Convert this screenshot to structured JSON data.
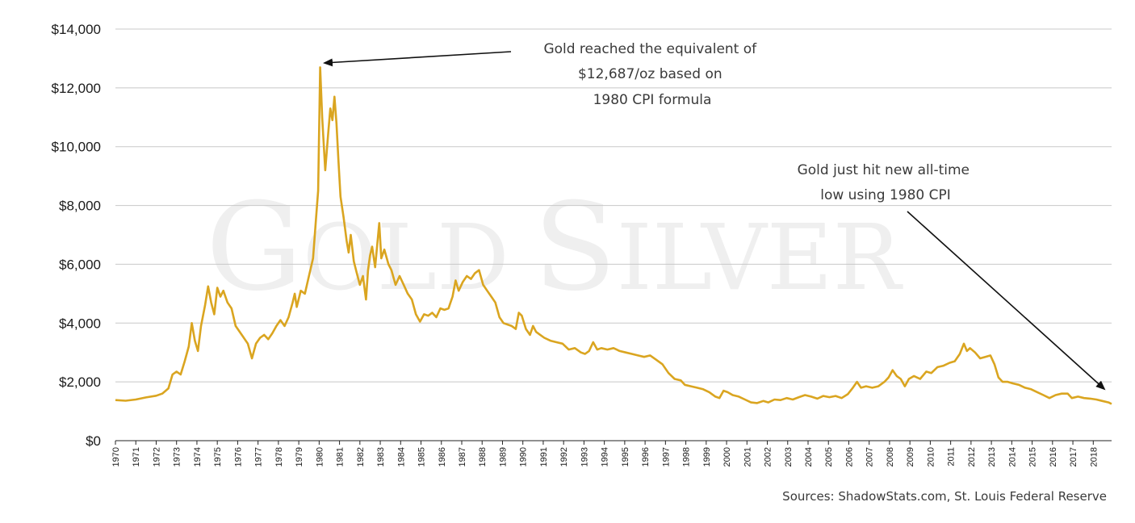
{
  "chart_data": {
    "type": "line",
    "title": "",
    "xlabel": "",
    "ylabel": "",
    "ylim": [
      0,
      14000
    ],
    "xlim": [
      1970,
      2018.9
    ],
    "grid": true,
    "legend": "none",
    "y_ticks": [
      0,
      2000,
      4000,
      6000,
      8000,
      10000,
      12000,
      14000
    ],
    "y_tick_labels": [
      "$0",
      "$2,000",
      "$4,000",
      "$6,000",
      "$8,000",
      "$10,000",
      "$12,000",
      "$14,000"
    ],
    "x_tick_labels": [
      "1970",
      "1971",
      "1972",
      "1973",
      "1974",
      "1975",
      "1976",
      "1977",
      "1978",
      "1979",
      "1980",
      "1981",
      "1982",
      "1983",
      "1984",
      "1985",
      "1986",
      "1987",
      "1988",
      "1989",
      "1990",
      "1991",
      "1992",
      "1993",
      "1994",
      "1995",
      "1996",
      "1997",
      "1998",
      "1999",
      "2000",
      "2001",
      "2002",
      "2003",
      "2004",
      "2005",
      "2006",
      "2007",
      "2008",
      "2009",
      "2010",
      "2011",
      "2012",
      "2013",
      "2014",
      "2015",
      "2016",
      "2017",
      "2018"
    ],
    "series": [
      {
        "color": "#DAA520",
        "points": [
          [
            1970.0,
            1380
          ],
          [
            1970.5,
            1360
          ],
          [
            1971.0,
            1400
          ],
          [
            1971.5,
            1470
          ],
          [
            1972.0,
            1530
          ],
          [
            1972.3,
            1600
          ],
          [
            1972.6,
            1780
          ],
          [
            1972.8,
            2250
          ],
          [
            1973.0,
            2350
          ],
          [
            1973.2,
            2250
          ],
          [
            1973.4,
            2700
          ],
          [
            1973.6,
            3200
          ],
          [
            1973.75,
            4000
          ],
          [
            1973.9,
            3400
          ],
          [
            1974.05,
            3050
          ],
          [
            1974.2,
            3900
          ],
          [
            1974.4,
            4600
          ],
          [
            1974.55,
            5250
          ],
          [
            1974.7,
            4700
          ],
          [
            1974.85,
            4300
          ],
          [
            1975.0,
            5200
          ],
          [
            1975.15,
            4900
          ],
          [
            1975.3,
            5100
          ],
          [
            1975.5,
            4700
          ],
          [
            1975.7,
            4500
          ],
          [
            1975.9,
            3900
          ],
          [
            1976.2,
            3600
          ],
          [
            1976.5,
            3300
          ],
          [
            1976.7,
            2800
          ],
          [
            1976.9,
            3300
          ],
          [
            1977.1,
            3500
          ],
          [
            1977.3,
            3600
          ],
          [
            1977.5,
            3450
          ],
          [
            1977.7,
            3650
          ],
          [
            1977.9,
            3900
          ],
          [
            1978.1,
            4100
          ],
          [
            1978.3,
            3900
          ],
          [
            1978.5,
            4200
          ],
          [
            1978.7,
            4700
          ],
          [
            1978.8,
            5000
          ],
          [
            1978.9,
            4550
          ],
          [
            1979.1,
            5100
          ],
          [
            1979.3,
            5000
          ],
          [
            1979.5,
            5600
          ],
          [
            1979.7,
            6200
          ],
          [
            1979.85,
            7600
          ],
          [
            1979.95,
            8500
          ],
          [
            1980.05,
            12700
          ],
          [
            1980.15,
            11000
          ],
          [
            1980.3,
            9200
          ],
          [
            1980.45,
            10500
          ],
          [
            1980.55,
            11300
          ],
          [
            1980.65,
            10900
          ],
          [
            1980.75,
            11700
          ],
          [
            1980.85,
            10800
          ],
          [
            1980.95,
            9500
          ],
          [
            1981.05,
            8300
          ],
          [
            1981.2,
            7600
          ],
          [
            1981.35,
            6800
          ],
          [
            1981.45,
            6400
          ],
          [
            1981.55,
            7000
          ],
          [
            1981.7,
            6100
          ],
          [
            1981.85,
            5700
          ],
          [
            1982.0,
            5300
          ],
          [
            1982.15,
            5600
          ],
          [
            1982.3,
            4800
          ],
          [
            1982.4,
            5800
          ],
          [
            1982.5,
            6300
          ],
          [
            1982.6,
            6600
          ],
          [
            1982.75,
            5900
          ],
          [
            1982.95,
            7400
          ],
          [
            1983.05,
            6200
          ],
          [
            1983.2,
            6500
          ],
          [
            1983.4,
            6000
          ],
          [
            1983.55,
            5800
          ],
          [
            1983.75,
            5300
          ],
          [
            1983.95,
            5600
          ],
          [
            1984.15,
            5300
          ],
          [
            1984.35,
            5000
          ],
          [
            1984.55,
            4800
          ],
          [
            1984.75,
            4300
          ],
          [
            1984.95,
            4050
          ],
          [
            1985.15,
            4300
          ],
          [
            1985.35,
            4250
          ],
          [
            1985.55,
            4350
          ],
          [
            1985.75,
            4200
          ],
          [
            1985.95,
            4500
          ],
          [
            1986.15,
            4450
          ],
          [
            1986.35,
            4500
          ],
          [
            1986.55,
            4900
          ],
          [
            1986.7,
            5450
          ],
          [
            1986.85,
            5100
          ],
          [
            1987.05,
            5400
          ],
          [
            1987.25,
            5600
          ],
          [
            1987.45,
            5500
          ],
          [
            1987.65,
            5700
          ],
          [
            1987.85,
            5800
          ],
          [
            1988.05,
            5300
          ],
          [
            1988.25,
            5100
          ],
          [
            1988.45,
            4900
          ],
          [
            1988.65,
            4700
          ],
          [
            1988.85,
            4200
          ],
          [
            1989.05,
            4000
          ],
          [
            1989.25,
            3950
          ],
          [
            1989.45,
            3900
          ],
          [
            1989.65,
            3800
          ],
          [
            1989.8,
            4350
          ],
          [
            1989.95,
            4250
          ],
          [
            1990.15,
            3800
          ],
          [
            1990.35,
            3600
          ],
          [
            1990.5,
            3900
          ],
          [
            1990.65,
            3700
          ],
          [
            1990.85,
            3600
          ],
          [
            1991.05,
            3500
          ],
          [
            1991.35,
            3400
          ],
          [
            1991.65,
            3350
          ],
          [
            1991.95,
            3300
          ],
          [
            1992.25,
            3100
          ],
          [
            1992.55,
            3150
          ],
          [
            1992.85,
            3000
          ],
          [
            1993.05,
            2950
          ],
          [
            1993.25,
            3050
          ],
          [
            1993.45,
            3350
          ],
          [
            1993.65,
            3100
          ],
          [
            1993.85,
            3150
          ],
          [
            1994.15,
            3100
          ],
          [
            1994.45,
            3150
          ],
          [
            1994.75,
            3050
          ],
          [
            1995.05,
            3000
          ],
          [
            1995.35,
            2950
          ],
          [
            1995.65,
            2900
          ],
          [
            1995.95,
            2850
          ],
          [
            1996.25,
            2900
          ],
          [
            1996.55,
            2750
          ],
          [
            1996.85,
            2600
          ],
          [
            1997.15,
            2300
          ],
          [
            1997.45,
            2100
          ],
          [
            1997.75,
            2050
          ],
          [
            1997.95,
            1900
          ],
          [
            1998.25,
            1850
          ],
          [
            1998.55,
            1800
          ],
          [
            1998.85,
            1750
          ],
          [
            1999.15,
            1650
          ],
          [
            1999.45,
            1500
          ],
          [
            1999.65,
            1450
          ],
          [
            1999.85,
            1700
          ],
          [
            2000.05,
            1650
          ],
          [
            2000.3,
            1550
          ],
          [
            2000.6,
            1500
          ],
          [
            2000.9,
            1400
          ],
          [
            2001.2,
            1300
          ],
          [
            2001.5,
            1280
          ],
          [
            2001.8,
            1350
          ],
          [
            2002.05,
            1300
          ],
          [
            2002.35,
            1400
          ],
          [
            2002.65,
            1380
          ],
          [
            2002.95,
            1450
          ],
          [
            2003.25,
            1400
          ],
          [
            2003.55,
            1480
          ],
          [
            2003.85,
            1550
          ],
          [
            2004.15,
            1500
          ],
          [
            2004.45,
            1430
          ],
          [
            2004.75,
            1520
          ],
          [
            2005.05,
            1480
          ],
          [
            2005.35,
            1520
          ],
          [
            2005.65,
            1450
          ],
          [
            2005.95,
            1580
          ],
          [
            2006.2,
            1800
          ],
          [
            2006.4,
            2000
          ],
          [
            2006.6,
            1800
          ],
          [
            2006.85,
            1850
          ],
          [
            2007.15,
            1800
          ],
          [
            2007.45,
            1850
          ],
          [
            2007.75,
            2000
          ],
          [
            2007.95,
            2150
          ],
          [
            2008.15,
            2400
          ],
          [
            2008.35,
            2200
          ],
          [
            2008.55,
            2100
          ],
          [
            2008.75,
            1850
          ],
          [
            2008.95,
            2100
          ],
          [
            2009.2,
            2200
          ],
          [
            2009.5,
            2100
          ],
          [
            2009.8,
            2350
          ],
          [
            2010.05,
            2300
          ],
          [
            2010.35,
            2500
          ],
          [
            2010.65,
            2550
          ],
          [
            2010.95,
            2650
          ],
          [
            2011.2,
            2700
          ],
          [
            2011.45,
            2950
          ],
          [
            2011.65,
            3300
          ],
          [
            2011.8,
            3050
          ],
          [
            2011.95,
            3150
          ],
          [
            2012.2,
            3000
          ],
          [
            2012.45,
            2800
          ],
          [
            2012.7,
            2850
          ],
          [
            2012.95,
            2900
          ],
          [
            2013.15,
            2600
          ],
          [
            2013.35,
            2150
          ],
          [
            2013.55,
            2000
          ],
          [
            2013.8,
            2000
          ],
          [
            2014.05,
            1950
          ],
          [
            2014.35,
            1900
          ],
          [
            2014.65,
            1800
          ],
          [
            2014.95,
            1750
          ],
          [
            2015.25,
            1650
          ],
          [
            2015.55,
            1550
          ],
          [
            2015.85,
            1450
          ],
          [
            2016.15,
            1550
          ],
          [
            2016.45,
            1600
          ],
          [
            2016.75,
            1600
          ],
          [
            2016.95,
            1450
          ],
          [
            2017.25,
            1500
          ],
          [
            2017.55,
            1450
          ],
          [
            2017.85,
            1430
          ],
          [
            2018.15,
            1400
          ],
          [
            2018.45,
            1350
          ],
          [
            2018.75,
            1300
          ],
          [
            2018.9,
            1250
          ]
        ]
      }
    ],
    "annotations": [
      {
        "lines": [
          "Gold reached the equivalent of",
          "$12,687/oz based on",
          "1980 CPI formula"
        ]
      },
      {
        "lines": [
          "Gold just hit new all-time",
          "low using 1980 CPI"
        ]
      }
    ],
    "source": "Sources: ShadowStats.com, St. Louis Federal Reserve"
  },
  "watermark": {
    "big_g": "G",
    "old": "OLD",
    "big_s": "S",
    "ilver": "ILVER"
  },
  "colors": {
    "line": "#DAA520",
    "grid": "#c8c8c8",
    "axis": "#222222",
    "watermark": "#efefef"
  }
}
